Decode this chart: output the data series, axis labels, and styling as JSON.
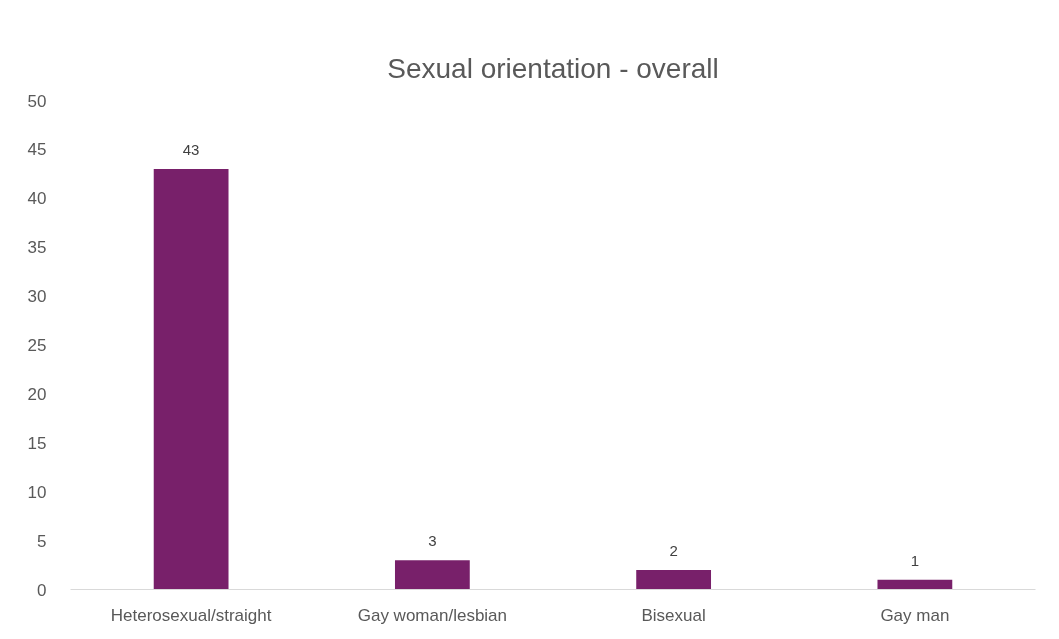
{
  "chart_data": {
    "type": "bar",
    "title": "Sexual orientation - overall",
    "categories": [
      "Heterosexual/straight",
      "Gay woman/lesbian",
      "Bisexual",
      "Gay man"
    ],
    "values": [
      43,
      3,
      2,
      1
    ],
    "color": "#78206a",
    "ylim": [
      0,
      50
    ],
    "yticks": [
      0,
      5,
      10,
      15,
      20,
      25,
      30,
      35,
      40,
      45,
      50
    ],
    "grid": false,
    "data_labels": true
  }
}
